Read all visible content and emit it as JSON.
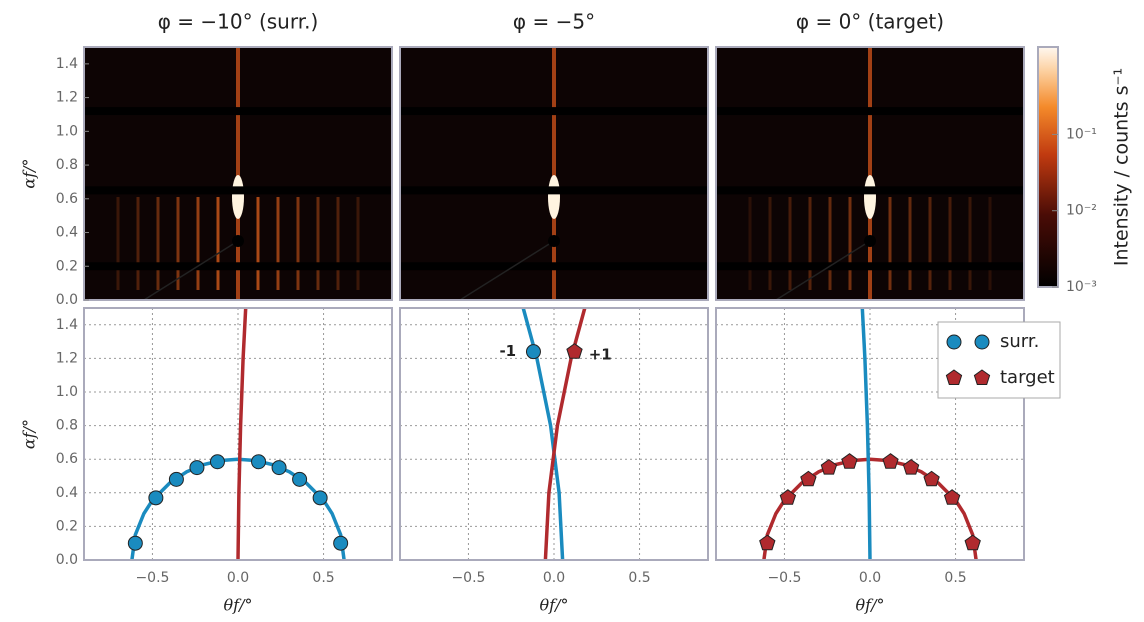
{
  "chart_data": [
    {
      "type": "image",
      "title": "φ = −10° (surr.)",
      "ylabel": "αf/°",
      "ylim": [
        0,
        1.5
      ],
      "yticks": [
        {
          "value": 0,
          "label": "0.0"
        },
        0.2,
        0.4,
        0.6,
        0.8,
        {
          "value": 1,
          "label": "1.0"
        },
        1.2,
        1.4
      ]
    },
    {
      "type": "image",
      "title": "φ = −5°",
      "ylim": [
        0,
        1.5
      ]
    },
    {
      "type": "image",
      "title": "φ = 0° (target)",
      "ylim": [
        0,
        1.5
      ]
    },
    {
      "type": "line",
      "xlabel": "θf/°",
      "ylabel": "αf/°",
      "grid": true,
      "xlim": [
        -0.9,
        0.9
      ],
      "xticks": [
        {
          "value": -0.5,
          "label": "−0.5"
        },
        {
          "value": 0,
          "label": "0.0"
        },
        0.5
      ],
      "ylim": [
        0,
        1.5
      ],
      "yticks": [
        {
          "value": 0,
          "label": "0.0"
        },
        0.2,
        0.4,
        0.6,
        0.8,
        {
          "value": 1,
          "label": "1.0"
        },
        1.2,
        1.4
      ],
      "series": [
        {
          "color": "#1a8bbf",
          "mode": "lines",
          "x": [
            -0.62,
            -0.6,
            -0.55,
            -0.5,
            -0.4,
            -0.3,
            -0.2,
            -0.1,
            0,
            0.1,
            0.2,
            0.3,
            0.4,
            0.5,
            0.55,
            0.6,
            0.62
          ],
          "values": [
            0,
            0.15,
            0.277,
            0.355,
            0.458,
            0.525,
            0.568,
            0.592,
            0.6,
            0.592,
            0.568,
            0.525,
            0.458,
            0.355,
            0.277,
            0.15,
            0
          ]
        },
        {
          "color": "#b02a2e",
          "mode": "lines",
          "x": [
            0,
            0.005,
            0.015,
            0.03,
            0.045
          ],
          "values": [
            0,
            0.4,
            0.8,
            1.2,
            1.5
          ]
        },
        {
          "color": "#1a8bbf",
          "mode": "markers",
          "marker": "circle",
          "x": [
            -0.6,
            -0.48,
            -0.36,
            -0.24,
            -0.12,
            0.12,
            0.24,
            0.36,
            0.48,
            0.6
          ],
          "values": [
            0.1,
            0.37,
            0.48,
            0.55,
            0.585,
            0.585,
            0.55,
            0.48,
            0.37,
            0.1
          ]
        }
      ]
    },
    {
      "type": "line",
      "xlabel": "θf/°",
      "grid": true,
      "xlim": [
        -0.9,
        0.9
      ],
      "xticks": [
        {
          "value": -0.5,
          "label": "−0.5"
        },
        {
          "value": 0,
          "label": "0.0"
        },
        0.5
      ],
      "ylim": [
        0,
        1.5
      ],
      "yticks": [
        0,
        0.2,
        0.4,
        0.6,
        0.8,
        1,
        1.2,
        1.4
      ],
      "series": [
        {
          "color": "#1a8bbf",
          "mode": "lines",
          "x": [
            0.05,
            0.03,
            -0.02,
            -0.1,
            -0.18
          ],
          "values": [
            0,
            0.4,
            0.8,
            1.2,
            1.5
          ]
        },
        {
          "color": "#b02a2e",
          "mode": "lines",
          "x": [
            -0.05,
            -0.03,
            0.02,
            0.1,
            0.18
          ],
          "values": [
            0,
            0.4,
            0.8,
            1.2,
            1.5
          ]
        },
        {
          "color": "#1a8bbf",
          "mode": "markers",
          "marker": "circle",
          "x": [
            -0.12
          ],
          "values": [
            1.24
          ]
        },
        {
          "color": "#b02a2e",
          "mode": "markers",
          "marker": "pentagon",
          "x": [
            0.12
          ],
          "values": [
            1.24
          ]
        }
      ],
      "annotations": [
        {
          "text": "-1",
          "x": -0.27,
          "y": 1.24
        },
        {
          "text": "+1",
          "x": 0.27,
          "y": 1.22
        }
      ]
    },
    {
      "type": "line",
      "xlabel": "θf/°",
      "grid": true,
      "xlim": [
        -0.9,
        0.9
      ],
      "xticks": [
        {
          "value": -0.5,
          "label": "−0.5"
        },
        {
          "value": 0,
          "label": "0.0"
        },
        0.5
      ],
      "ylim": [
        0,
        1.5
      ],
      "yticks": [
        0,
        0.2,
        0.4,
        0.6,
        0.8,
        1,
        1.2,
        1.4
      ],
      "series": [
        {
          "color": "#b02a2e",
          "mode": "lines",
          "x": [
            -0.62,
            -0.6,
            -0.55,
            -0.5,
            -0.4,
            -0.3,
            -0.2,
            -0.1,
            0,
            0.1,
            0.2,
            0.3,
            0.4,
            0.5,
            0.55,
            0.6,
            0.62
          ],
          "values": [
            0,
            0.15,
            0.277,
            0.355,
            0.458,
            0.525,
            0.568,
            0.592,
            0.6,
            0.592,
            0.568,
            0.525,
            0.458,
            0.355,
            0.277,
            0.15,
            0
          ]
        },
        {
          "color": "#1a8bbf",
          "mode": "lines",
          "x": [
            0,
            -0.005,
            -0.015,
            -0.03,
            -0.045
          ],
          "values": [
            0,
            0.4,
            0.8,
            1.2,
            1.5
          ]
        },
        {
          "color": "#b02a2e",
          "mode": "markers",
          "marker": "pentagon",
          "x": [
            -0.6,
            -0.48,
            -0.36,
            -0.24,
            -0.12,
            0.12,
            0.24,
            0.36,
            0.48,
            0.6
          ],
          "values": [
            0.1,
            0.37,
            0.48,
            0.55,
            0.585,
            0.585,
            0.55,
            0.48,
            0.37,
            0.1
          ]
        }
      ],
      "legend": {
        "position": "outside right",
        "entries": [
          {
            "name": "surr.",
            "color": "#1a8bbf",
            "marker": "circle"
          },
          {
            "name": "target",
            "color": "#b02a2e",
            "marker": "pentagon"
          }
        ]
      }
    },
    {
      "type": "colorbar",
      "label": "Intensity / counts s⁻¹",
      "log": true,
      "ylim": [
        0.001,
        1.4
      ],
      "yticks": [
        {
          "value": 0.001,
          "label": "10⁻³"
        },
        {
          "value": 0.01,
          "label": "10⁻²"
        },
        {
          "value": 0.1,
          "label": "10⁻¹"
        }
      ]
    }
  ]
}
